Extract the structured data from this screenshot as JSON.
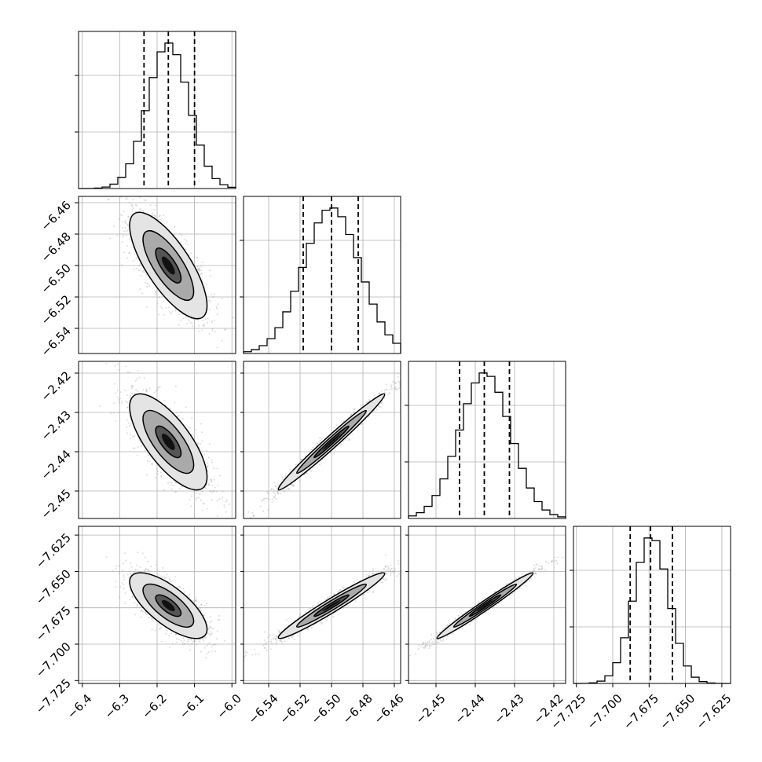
{
  "chart_data": {
    "type": "corner",
    "title": "",
    "n_parameters": 4,
    "parameters": [
      {
        "mean": -6.17,
        "sigma": 0.055,
        "range": [
          -6.41,
          -5.99
        ],
        "quantiles": [
          -6.235,
          -6.17,
          -6.1
        ],
        "ticks": [
          -6.4,
          -6.3,
          -6.2,
          -6.1,
          -6.0
        ],
        "tick_labels": [
          "−6.4",
          "−6.3",
          "−6.2",
          "−6.1",
          "−6.0"
        ]
      },
      {
        "mean": -6.5,
        "sigma": 0.018,
        "range": [
          -6.556,
          -6.456
        ],
        "quantiles": [
          -6.518,
          -6.5,
          -6.483
        ],
        "ticks": [
          -6.54,
          -6.52,
          -6.5,
          -6.48,
          -6.46
        ],
        "tick_labels": [
          "−6.54",
          "−6.52",
          "−6.50",
          "−6.48",
          "−6.46"
        ]
      },
      {
        "mean": -2.4375,
        "sigma": 0.0065,
        "range": [
          -2.457,
          -2.417
        ],
        "quantiles": [
          -2.444,
          -2.4377,
          -2.4313
        ],
        "ticks": [
          -2.45,
          -2.44,
          -2.43,
          -2.42
        ],
        "tick_labels": [
          "−2.45",
          "−2.44",
          "−2.43",
          "−2.42"
        ]
      },
      {
        "mean": -7.6735,
        "sigma": 0.012,
        "range": [
          -7.727,
          -7.619
        ],
        "quantiles": [
          -7.688,
          -7.674,
          -7.659
        ],
        "ticks": [
          -7.725,
          -7.7,
          -7.675,
          -7.65,
          -7.625
        ],
        "tick_labels": [
          "−7.725",
          "−7.700",
          "−7.675",
          "−7.650",
          "−7.625"
        ]
      }
    ],
    "correlations": [
      [
        1.0,
        -0.75,
        -0.73,
        -0.72
      ],
      [
        -0.75,
        1.0,
        0.985,
        0.97
      ],
      [
        -0.73,
        0.985,
        1.0,
        0.985
      ],
      [
        -0.72,
        0.97,
        0.985,
        1.0
      ]
    ],
    "histogram_bins": 20,
    "contour_levels": [
      0.39,
      0.86,
      0.99
    ],
    "quantile_line_style": "dashed",
    "grid": true,
    "colors": {
      "ink": "#000000",
      "grid": "#b0b0b0",
      "fill_light": "#e4e4e4",
      "fill_mid": "#aaaaaa",
      "fill_dark": "#555555",
      "scatter": "#9a9a9a"
    }
  }
}
